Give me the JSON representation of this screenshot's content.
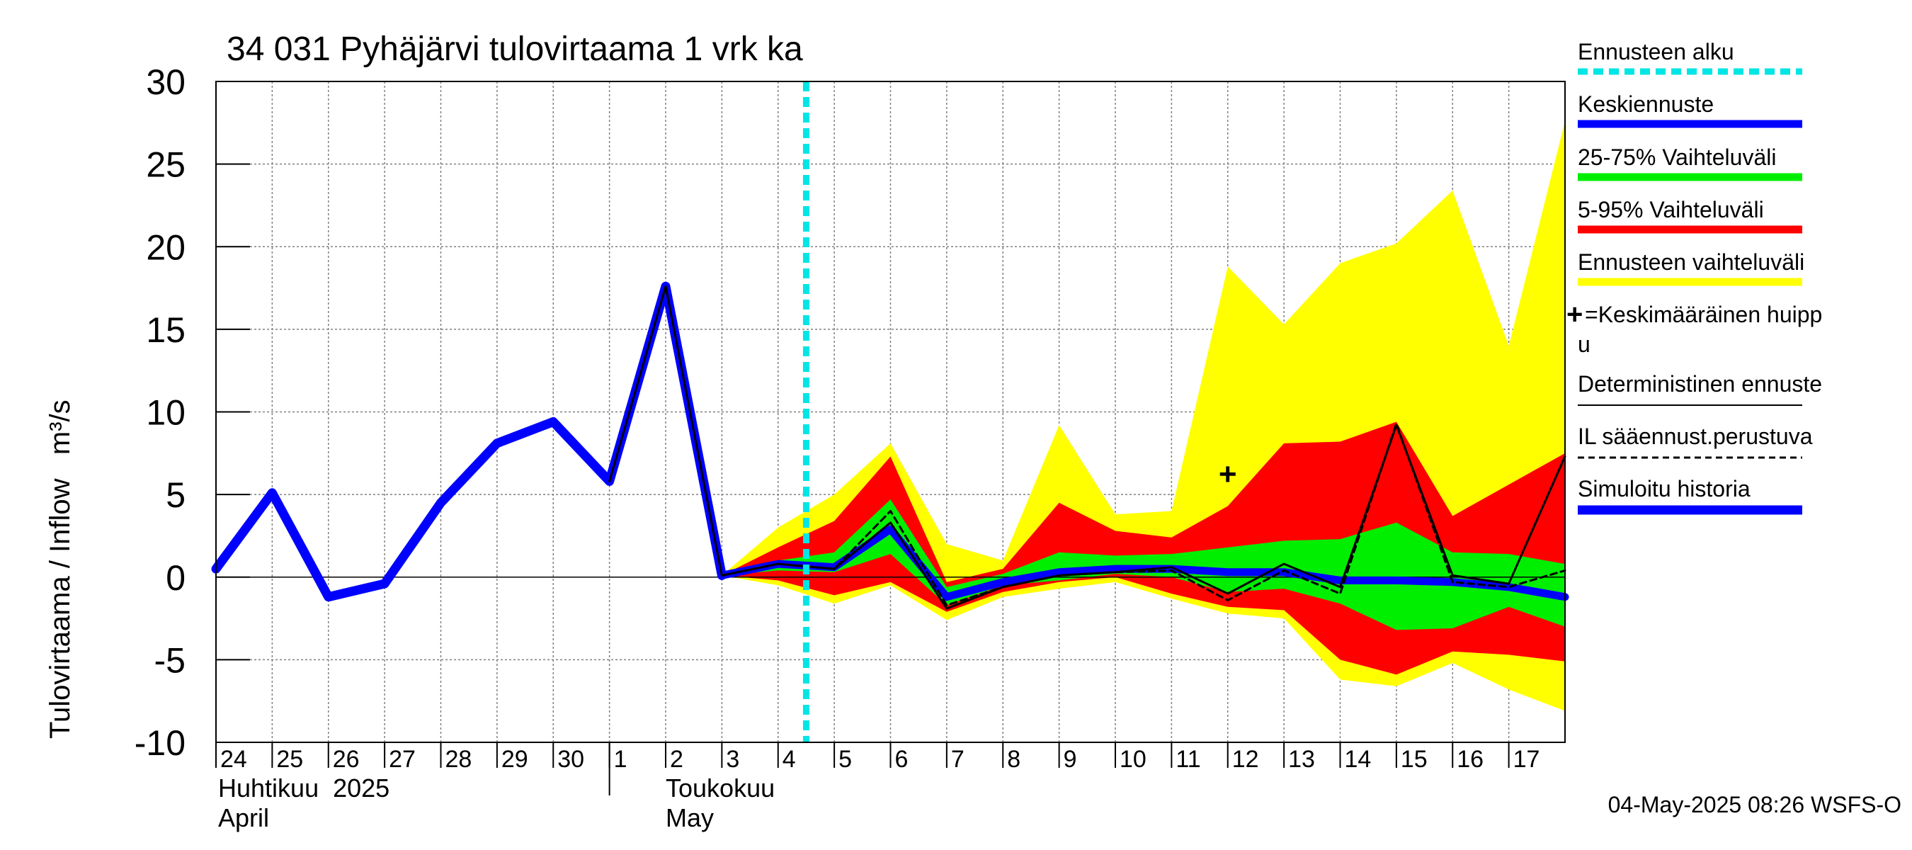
{
  "chart_data": {
    "type": "area",
    "title": "34 031 Pyhäjärvi tulovirtaama 1 vrk ka",
    "ylabel": "Tulovirtaama / Inflow   m³/s",
    "ylim": [
      -10,
      30
    ],
    "yticks": [
      -10,
      -5,
      0,
      5,
      10,
      15,
      20,
      25,
      30
    ],
    "grid": true,
    "legend_position": "right",
    "x_day_labels": [
      "24",
      "25",
      "26",
      "27",
      "28",
      "29",
      "30",
      "1",
      "2",
      "3",
      "4",
      "5",
      "6",
      "7",
      "8",
      "9",
      "10",
      "11",
      "12",
      "13",
      "14",
      "15",
      "16",
      "17"
    ],
    "month_labels": [
      {
        "fi": "Huhtikuu  2025",
        "en": "April"
      },
      {
        "fi": "Toukokuu",
        "en": "May"
      }
    ],
    "forecast_start_day": 10.5,
    "series": [
      {
        "name": "Simuloitu historia",
        "color": "#0000ff",
        "x": [
          0,
          1,
          2,
          3,
          4,
          5,
          6,
          7,
          8,
          9
        ],
        "values": [
          0.5,
          5.1,
          -1.2,
          -0.4,
          4.5,
          8.1,
          9.4,
          5.8,
          17.6,
          0.1
        ]
      },
      {
        "name": "Keskiennuste",
        "color": "#0000ff",
        "x": [
          9,
          10,
          11,
          12,
          13,
          14,
          15,
          16,
          17,
          18,
          19,
          20,
          21,
          22,
          23,
          24
        ],
        "values": [
          0.1,
          0.8,
          0.6,
          2.9,
          -1.2,
          -0.3,
          0.3,
          0.5,
          0.5,
          0.3,
          0.3,
          -0.2,
          -0.2,
          -0.3,
          -0.6,
          -1.2
        ]
      },
      {
        "name": "Deterministinen ennuste",
        "color": "#000000",
        "x": [
          7,
          8,
          9,
          10,
          11,
          12,
          13,
          14,
          15,
          16,
          17,
          18,
          19,
          20,
          21,
          22,
          23,
          24
        ],
        "values": [
          5.8,
          17.6,
          0.1,
          0.8,
          0.5,
          3.3,
          -1.9,
          -0.6,
          0.1,
          0.3,
          0.6,
          -1.0,
          0.8,
          -0.6,
          9.2,
          0.1,
          -0.4,
          7.3
        ]
      },
      {
        "name": "IL sääennust.perustuva",
        "color": "#000000",
        "x": [
          9,
          10,
          11,
          12,
          13,
          14,
          15,
          16,
          17,
          18,
          19,
          20,
          21,
          22,
          23,
          24
        ],
        "values": [
          0.1,
          0.8,
          0.5,
          4.0,
          -1.7,
          -0.6,
          0.1,
          0.3,
          0.4,
          -1.4,
          0.4,
          -1.0,
          9.3,
          -0.3,
          -0.6,
          0.4
        ]
      }
    ],
    "bands": [
      {
        "name": "Ennusteen vaihteluväli",
        "color": "#ffff00",
        "x": [
          9,
          10,
          11,
          12,
          13,
          14,
          15,
          16,
          17,
          18,
          19,
          20,
          21,
          22,
          23,
          24
        ],
        "upper": [
          0.1,
          3.0,
          5.0,
          8.1,
          2.0,
          1.0,
          9.2,
          3.8,
          4.0,
          18.8,
          15.3,
          19.0,
          20.2,
          23.4,
          14.0,
          27.6
        ],
        "lower": [
          0.1,
          -0.5,
          -1.6,
          -0.5,
          -2.6,
          -1.2,
          -0.7,
          -0.3,
          -1.3,
          -2.2,
          -2.5,
          -6.2,
          -6.6,
          -5.2,
          -6.8,
          -8.1
        ]
      },
      {
        "name": "5-95% Vaihteluväli",
        "color": "#ff0000",
        "x": [
          9,
          10,
          11,
          12,
          13,
          14,
          15,
          16,
          17,
          18,
          19,
          20,
          21,
          22,
          23,
          24
        ],
        "upper": [
          0.1,
          1.8,
          3.4,
          7.3,
          -0.3,
          0.5,
          4.5,
          2.8,
          2.4,
          4.3,
          8.1,
          8.2,
          9.4,
          3.7,
          5.6,
          7.5
        ],
        "lower": [
          0.1,
          -0.2,
          -1.1,
          -0.3,
          -2.1,
          -0.9,
          -0.3,
          0.0,
          -1.0,
          -1.8,
          -2.0,
          -5.0,
          -5.9,
          -4.5,
          -4.7,
          -5.1
        ]
      },
      {
        "name": "25-75% Vaihteluväli",
        "color": "#00ee00",
        "x": [
          9,
          10,
          11,
          12,
          13,
          14,
          15,
          16,
          17,
          18,
          19,
          20,
          21,
          22,
          23,
          24
        ],
        "upper": [
          0.1,
          1.0,
          1.5,
          4.7,
          -0.6,
          0.2,
          1.5,
          1.3,
          1.4,
          1.8,
          2.2,
          2.3,
          3.3,
          1.5,
          1.4,
          0.8
        ],
        "lower": [
          0.1,
          0.4,
          0.3,
          1.4,
          -1.7,
          -0.5,
          -0.2,
          0.2,
          0.0,
          -0.9,
          -0.7,
          -1.6,
          -3.2,
          -3.1,
          -1.8,
          -3.0
        ]
      }
    ],
    "mean_peak": {
      "x": 18,
      "y": 6.2,
      "label": "+"
    }
  },
  "legend": {
    "forecast_start": "Ennusteen alku",
    "mean_forecast": "Keskiennuste",
    "range_25_75": "25-75% Vaihteluväli",
    "range_5_95": "5-95% Vaihteluväli",
    "range_full": "Ennusteen vaihteluväli",
    "peak_line1": "=Keskimääräinen huipp",
    "peak_line2": "u",
    "deterministic": "Deterministinen ennuste",
    "il_based": "IL sääennust.perustuva",
    "history": "Simuloitu historia"
  },
  "colors": {
    "history": "#0000ff",
    "forecast_start": "#00e5e5",
    "range_full": "#ffff00",
    "range_5_95": "#ff0000",
    "range_25_75": "#00ee00",
    "grid": "#808080"
  },
  "timestamp": "04-May-2025 08:26 WSFS-O"
}
